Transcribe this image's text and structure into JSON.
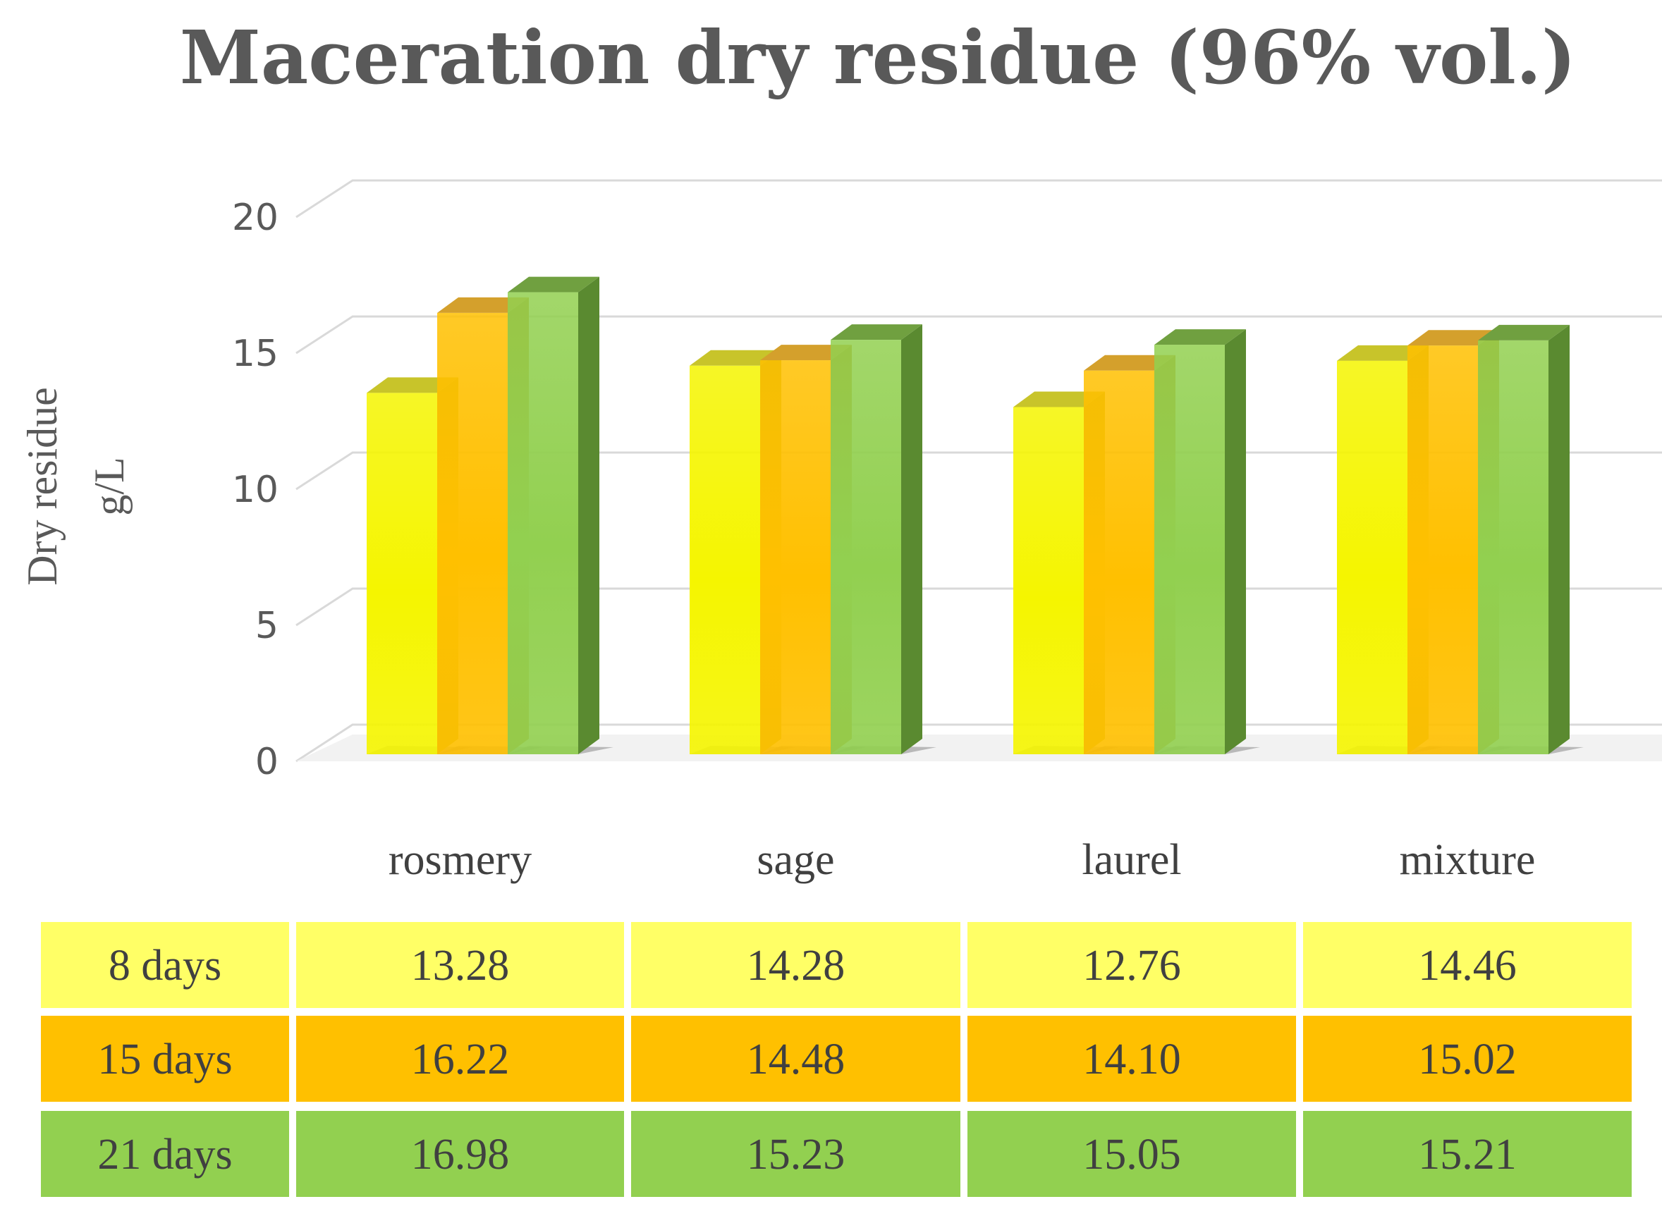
{
  "chart_data": {
    "type": "bar",
    "title": "Maceration dry residue (96% vol.)",
    "ylabel_lines": [
      "Dry residue",
      "g/L"
    ],
    "ylim": [
      0,
      20
    ],
    "yticks": [
      0,
      5,
      10,
      15,
      20
    ],
    "categories": [
      "rosmery",
      "sage",
      "laurel",
      "mixture"
    ],
    "series": [
      {
        "name": "8 days",
        "values": [
          13.28,
          14.28,
          12.76,
          14.46
        ],
        "display": [
          "13.28",
          "14.28",
          "12.76",
          "14.46"
        ],
        "color": "#F5F500",
        "top_color": "#C8C42A",
        "side_color": "#B5B520",
        "cell_color": "#FFFF66"
      },
      {
        "name": "15 days",
        "values": [
          16.22,
          14.48,
          14.1,
          15.02
        ],
        "display": [
          "16.22",
          "14.48",
          "14.10",
          "15.02"
        ],
        "color": "#FFC000",
        "top_color": "#D4A02C",
        "side_color": "#C08A10",
        "cell_color": "#FFC000"
      },
      {
        "name": "21 days",
        "values": [
          16.98,
          15.23,
          15.05,
          15.21
        ],
        "display": [
          "16.98",
          "15.23",
          "15.05",
          "15.21"
        ],
        "color": "#92D050",
        "top_color": "#70A040",
        "side_color": "#5A8A30",
        "cell_color": "#92D050"
      }
    ],
    "grid": true,
    "data_table": true
  }
}
